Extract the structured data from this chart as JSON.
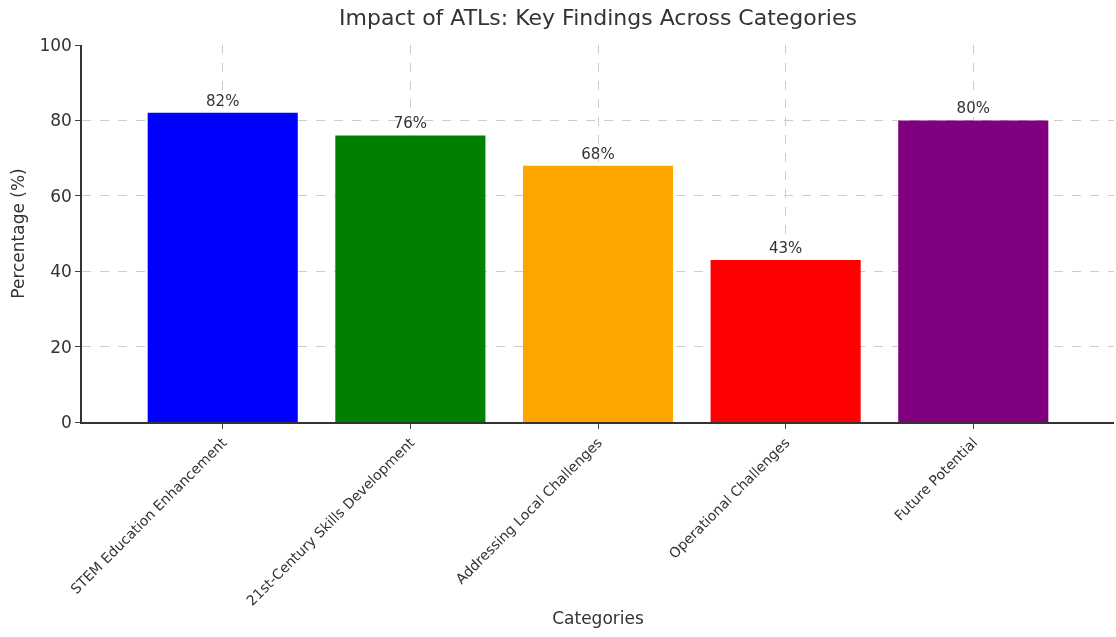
{
  "chart_data": {
    "type": "bar",
    "title": "Impact of ATLs: Key Findings Across Categories",
    "xlabel": "Categories",
    "ylabel": "Percentage (%)",
    "categories": [
      "STEM Education Enhancement",
      "21st-Century Skills Development",
      "Addressing Local Challenges",
      "Operational Challenges",
      "Future Potential"
    ],
    "values": [
      82,
      76,
      68,
      43,
      80
    ],
    "colors": [
      "#0000ff",
      "#008000",
      "#ffa500",
      "#ff0000",
      "#800080"
    ],
    "value_labels": [
      "82%",
      "76%",
      "68%",
      "43%",
      "80%"
    ],
    "ylim": [
      0,
      100
    ],
    "yticks": [
      0,
      20,
      40,
      60,
      80,
      100
    ],
    "grid": true
  }
}
